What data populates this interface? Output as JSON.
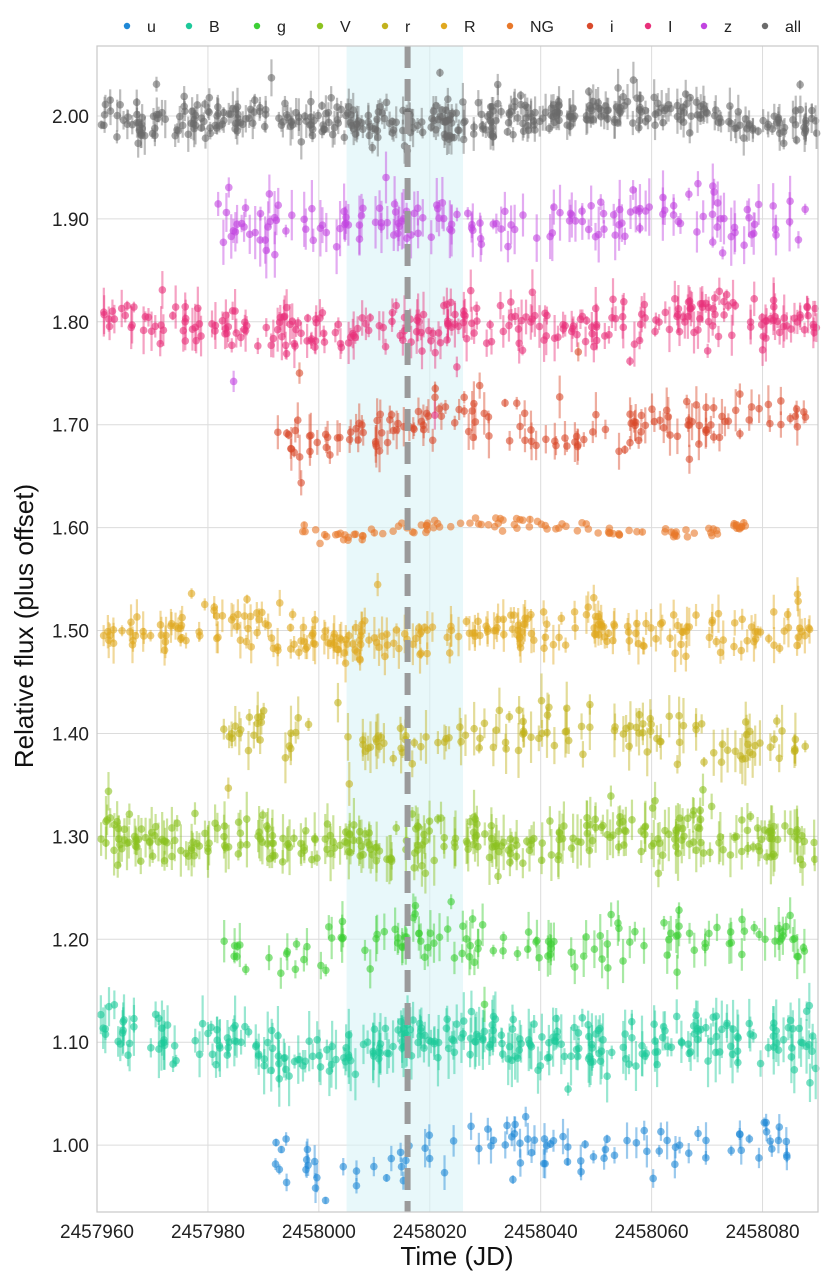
{
  "chart_data": {
    "type": "scatter",
    "title": "",
    "xlabel": "Time (JD)",
    "ylabel": "Relative flux (plus offset)",
    "xlim": [
      2457960,
      2458090
    ],
    "ylim": [
      0.935,
      2.068
    ],
    "x_ticks": [
      2457960,
      2457980,
      2458000,
      2458020,
      2458040,
      2458060,
      2458080
    ],
    "x_tick_labels": [
      "2457960",
      "2457980",
      "2458000",
      "2458020",
      "2458040",
      "2458060",
      "2458080"
    ],
    "y_ticks": [
      1.0,
      1.1,
      1.2,
      1.3,
      1.4,
      1.5,
      1.6,
      1.7,
      1.8,
      1.9,
      2.0
    ],
    "y_tick_labels": [
      "1.00",
      "1.10",
      "1.20",
      "1.30",
      "1.40",
      "1.50",
      "1.60",
      "1.70",
      "1.80",
      "1.90",
      "2.00"
    ],
    "grid": true,
    "legend_position": "top",
    "shaded_region": {
      "x_start": 2458005,
      "x_end": 2458026,
      "color": "#d8f3f6"
    },
    "vertical_line": {
      "x": 2458016,
      "style": "dashed",
      "color": "#9a9a9a"
    },
    "series": [
      {
        "name": "u",
        "color": "#1f88d6",
        "offset": 1.0,
        "x_start": 2457992,
        "x_end": 2458086,
        "n": 95,
        "scatter": 0.013,
        "err": 0.011,
        "dip": 0.02
      },
      {
        "name": "B",
        "color": "#1dc99a",
        "offset": 1.1,
        "x_start": 2457960,
        "x_end": 2458090,
        "n": 300,
        "scatter": 0.013,
        "err": 0.018,
        "dip": 0.012
      },
      {
        "name": "g",
        "color": "#3dcf35",
        "offset": 1.2,
        "x_start": 2457981,
        "x_end": 2458088,
        "n": 130,
        "scatter": 0.013,
        "err": 0.014,
        "dip": 0.012
      },
      {
        "name": "V",
        "color": "#8bc220",
        "offset": 1.3,
        "x_start": 2457960,
        "x_end": 2458090,
        "n": 320,
        "scatter": 0.011,
        "err": 0.016,
        "dip": 0.01
      },
      {
        "name": "r",
        "color": "#c2b21d",
        "offset": 1.4,
        "x_start": 2457981,
        "x_end": 2458088,
        "n": 140,
        "scatter": 0.012,
        "err": 0.016,
        "dip": 0.012
      },
      {
        "name": "R",
        "color": "#e0a81f",
        "offset": 1.5,
        "x_start": 2457961,
        "x_end": 2458089,
        "n": 260,
        "scatter": 0.01,
        "err": 0.012,
        "dip": 0.01
      },
      {
        "name": "NG",
        "color": "#e8782a",
        "offset": 1.6,
        "x_start": 2457997,
        "x_end": 2458077,
        "n": 110,
        "scatter": 0.003,
        "err": 0.002,
        "dip": 0.002
      },
      {
        "name": "i",
        "color": "#d94a2b",
        "offset": 1.7,
        "x_start": 2457992,
        "x_end": 2458088,
        "n": 150,
        "scatter": 0.011,
        "err": 0.013,
        "dip": 0.012
      },
      {
        "name": "I",
        "color": "#e8307a",
        "offset": 1.8,
        "x_start": 2457961,
        "x_end": 2458090,
        "n": 280,
        "scatter": 0.012,
        "err": 0.014,
        "dip": 0.013
      },
      {
        "name": "z",
        "color": "#c144e0",
        "offset": 1.9,
        "x_start": 2457981,
        "x_end": 2458088,
        "n": 160,
        "scatter": 0.013,
        "err": 0.017,
        "dip": 0.01
      },
      {
        "name": "all",
        "color": "#6b6b6b",
        "offset": 2.0,
        "x_start": 2457960,
        "x_end": 2458090,
        "n": 420,
        "scatter": 0.009,
        "err": 0.011,
        "dip": 0.012
      }
    ]
  }
}
